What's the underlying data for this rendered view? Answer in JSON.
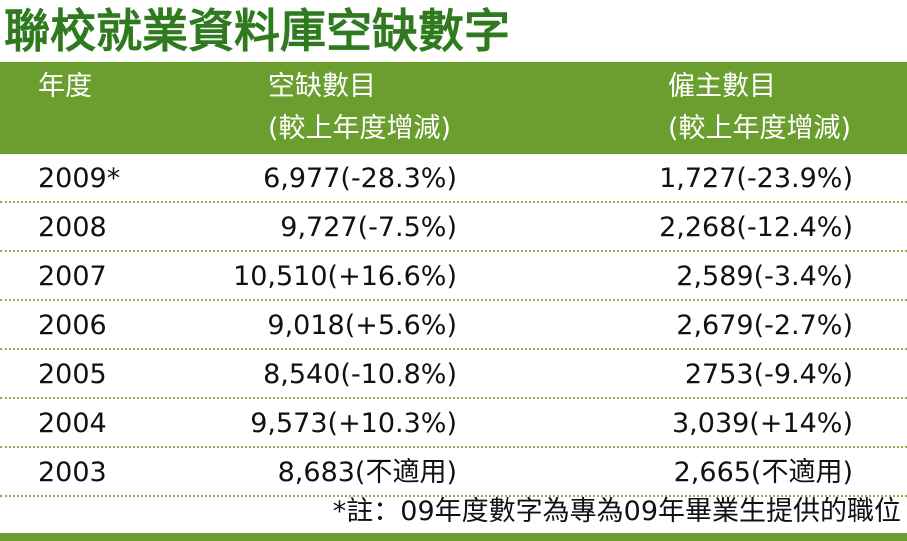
{
  "title": "聯校就業資料庫空缺數字",
  "header": {
    "year": "年度",
    "vacancies_line1": "空缺數目",
    "vacancies_line2": "(較上年度增減)",
    "employers_line1": "僱主數目",
    "employers_line2": "(較上年度增減)"
  },
  "rows": [
    {
      "year": "2009*",
      "vacancies": "6,977(-28.3%)",
      "employers": "1,727(-23.9%)"
    },
    {
      "year": "2008",
      "vacancies": "9,727(-7.5%)",
      "employers": "2,268(-12.4%)"
    },
    {
      "year": "2007",
      "vacancies": "10,510(+16.6%)",
      "employers": "2,589(-3.4%)"
    },
    {
      "year": "2006",
      "vacancies": "9,018(+5.6%)",
      "employers": "2,679(-2.7%)"
    },
    {
      "year": "2005",
      "vacancies": "8,540(-10.8%)",
      "employers": "2753(-9.4%)"
    },
    {
      "year": "2004",
      "vacancies": "9,573(+10.3%)",
      "employers": "3,039(+14%)"
    },
    {
      "year": "2003",
      "vacancies": "8,683(不適用)",
      "employers": "2,665(不適用)"
    }
  ],
  "note": "*註：09年度數字為專為09年畢業生提供的職位",
  "colors": {
    "title": "#2f7a1f",
    "header_bg": "#6a9e2e",
    "divider": "#8cb05a"
  }
}
